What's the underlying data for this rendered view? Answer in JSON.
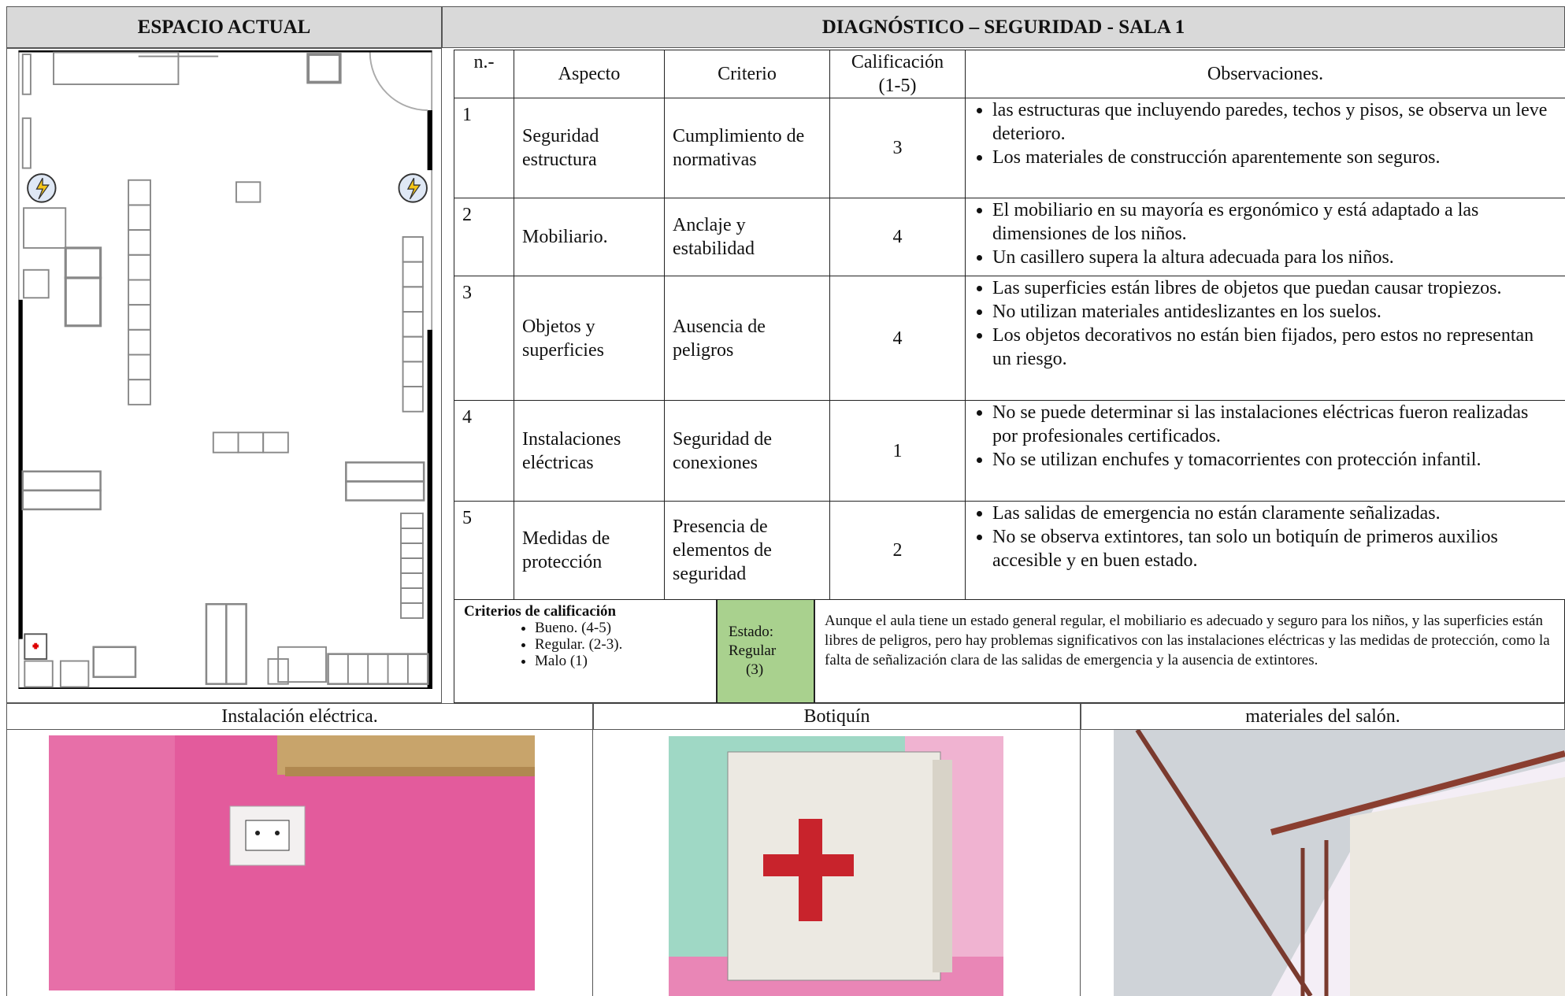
{
  "header": {
    "left_title": "ESPACIO ACTUAL",
    "right_title": "DIAGNÓSTICO – SEGURIDAD - SALA 1"
  },
  "table": {
    "columns": [
      "n.-",
      "Aspecto",
      "Criterio",
      "Calificación (1-5)",
      "Observaciones."
    ],
    "rows": [
      {
        "n": 1,
        "aspecto": "Seguridad estructura",
        "criterio": "Cumplimiento de normativas",
        "calificacion": 3,
        "observaciones": [
          "las estructuras que incluyendo paredes, techos y pisos, se observa un leve deterioro.",
          "Los materiales de construcción aparentemente son seguros."
        ]
      },
      {
        "n": 2,
        "aspecto": "Mobiliario.",
        "criterio": "Anclaje y estabilidad",
        "calificacion": 4,
        "observaciones": [
          "El mobiliario en su mayoría es ergonómico y está adaptado a las dimensiones de los niños.",
          "Un casillero supera la altura adecuada para los niños."
        ]
      },
      {
        "n": 3,
        "aspecto": "Objetos y superficies",
        "criterio": "Ausencia de peligros",
        "calificacion": 4,
        "observaciones": [
          "Las superficies están libres de objetos que puedan causar tropiezos.",
          "No utilizan materiales antideslizantes en los suelos.",
          "Los objetos decorativos no están bien fijados, pero estos no representan un riesgo."
        ]
      },
      {
        "n": 4,
        "aspecto": "Instalaciones eléctricas",
        "criterio": "Seguridad de conexiones",
        "calificacion": 1,
        "observaciones": [
          "No se puede determinar si las instalaciones eléctricas fueron realizadas por profesionales certificados.",
          "No se utilizan enchufes y tomacorrientes con protección infantil."
        ]
      },
      {
        "n": 5,
        "aspecto": "Medidas de protección",
        "criterio": "Presencia de elementos de seguridad",
        "calificacion": 2,
        "observaciones": [
          "Las salidas de emergencia no están claramente señalizadas.",
          "No se observa extintores, tan solo un botiquín de primeros auxilios accesible y en buen estado."
        ]
      }
    ]
  },
  "summary": {
    "criteria_title": "Criterios de calificación",
    "criteria": [
      "Bueno. (4-5)",
      "Regular. (2-3).",
      "Malo (1)"
    ],
    "estado": [
      "Estado:",
      "Regular",
      "(3)"
    ],
    "conclusion": "Aunque el aula tiene un estado general regular, el mobiliario es adecuado y seguro para los niños, y las superficies están libres de peligros, pero hay problemas significativos con las instalaciones eléctricas y las medidas de protección, como la falta de señalización clara de las salidas de emergencia y la ausencia de extintores."
  },
  "photos": [
    {
      "caption": "Instalación eléctrica."
    },
    {
      "caption": "Botiquín"
    },
    {
      "caption": "materiales del salón."
    }
  ]
}
